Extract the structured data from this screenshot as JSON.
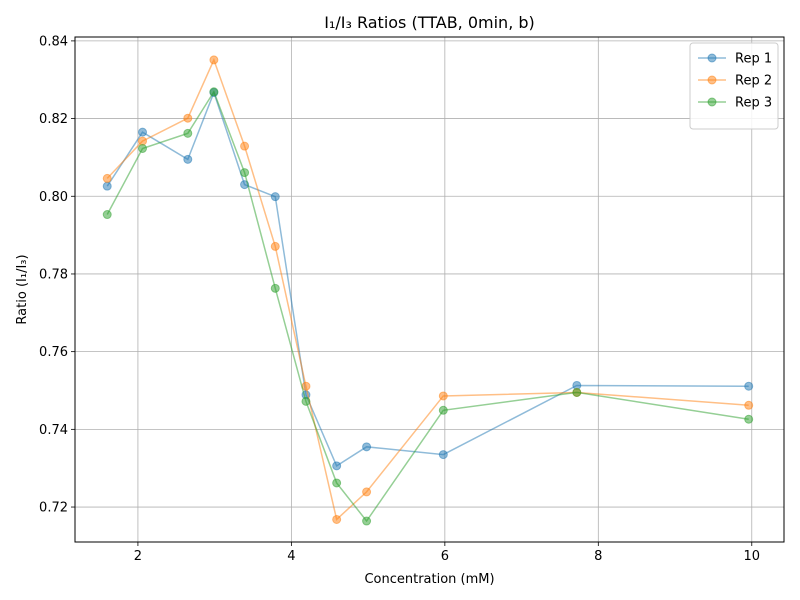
{
  "chart_data": {
    "type": "line",
    "title": "I₁/I₃ Ratios (TTAB, 0min, b)",
    "xlabel": "Concentration (mM)",
    "ylabel": "Ratio (I₁/I₃)",
    "xlim": [
      1.18,
      10.42
    ],
    "ylim": [
      0.711,
      0.841
    ],
    "xticks": [
      2,
      4,
      6,
      8,
      10
    ],
    "yticks": [
      0.72,
      0.74,
      0.76,
      0.78,
      0.8,
      0.82,
      0.84
    ],
    "grid": true,
    "legend_position": "top-right",
    "series": [
      {
        "name": "Rep 1",
        "color": "#1f77b4",
        "x": [
          1.6,
          2.06,
          2.65,
          2.99,
          3.39,
          3.79,
          4.19,
          4.59,
          4.98,
          5.98,
          7.72,
          9.96
        ],
        "y": [
          0.8026,
          0.8165,
          0.8095,
          0.8267,
          0.803,
          0.7999,
          0.7489,
          0.7306,
          0.7355,
          0.7335,
          0.7513,
          0.7511
        ]
      },
      {
        "name": "Rep 2",
        "color": "#ff7f0e",
        "x": [
          1.6,
          2.06,
          2.65,
          2.99,
          3.39,
          3.79,
          4.19,
          4.59,
          4.98,
          5.98,
          7.72,
          9.96
        ],
        "y": [
          0.8046,
          0.8142,
          0.8201,
          0.8351,
          0.8129,
          0.7871,
          0.7511,
          0.7168,
          0.7239,
          0.7486,
          0.7495,
          0.7462
        ]
      },
      {
        "name": "Rep 3",
        "color": "#2ca02c",
        "x": [
          1.6,
          2.06,
          2.65,
          2.99,
          3.39,
          3.79,
          4.19,
          4.59,
          4.98,
          5.98,
          7.72,
          9.96
        ],
        "y": [
          0.7953,
          0.8123,
          0.8162,
          0.8269,
          0.8061,
          0.7763,
          0.7472,
          0.7262,
          0.7164,
          0.7449,
          0.7495,
          0.7426
        ]
      }
    ]
  }
}
